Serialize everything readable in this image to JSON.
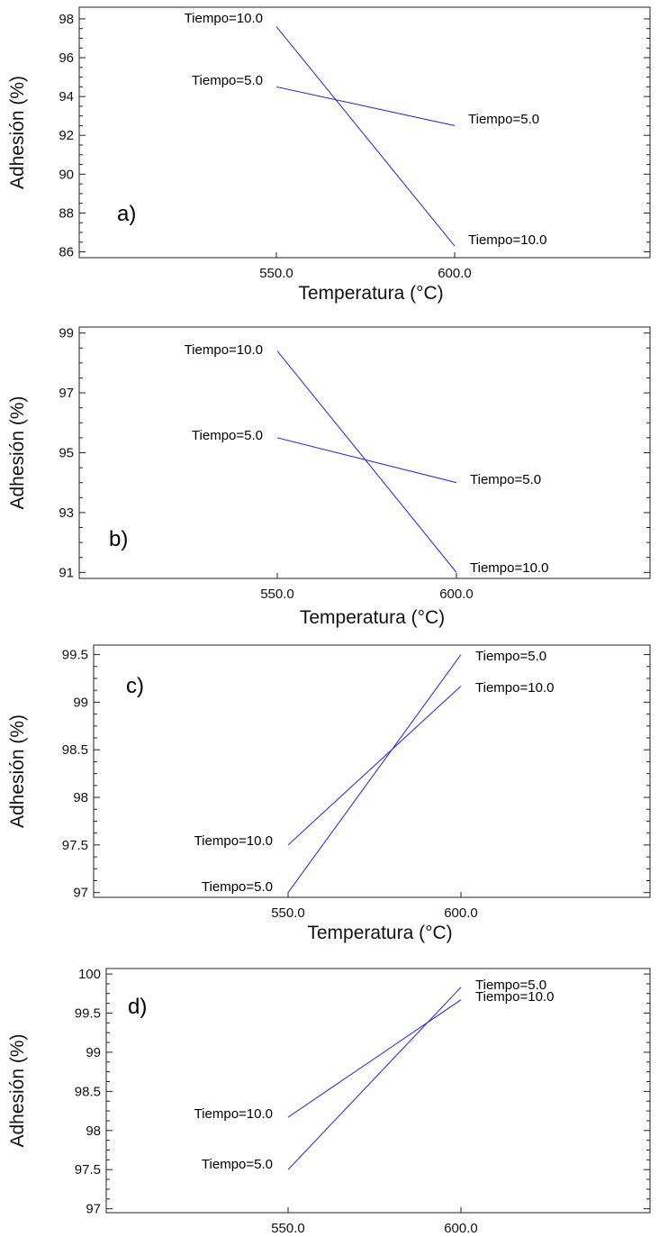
{
  "figure": {
    "background": "#ffffff",
    "line_color": "#3333dd",
    "axis_color": "#222222"
  },
  "chart_data": [
    {
      "panel": "a)",
      "type": "line",
      "xlabel": "Temperatura (°C)",
      "ylabel": "Adhesión (%)",
      "ylim": [
        85.7,
        98.6
      ],
      "xticks": [
        550,
        600
      ],
      "xtick_labels": [
        "550.0",
        "600.0"
      ],
      "yticks": [
        86,
        88,
        90,
        92,
        94,
        96,
        98
      ],
      "ytick_labels": [
        "86",
        "88",
        "90",
        "92",
        "94",
        "96",
        "98"
      ],
      "series": [
        {
          "name": "Tiempo=10.0",
          "x": [
            550,
            600
          ],
          "y": [
            97.6,
            86.3
          ],
          "label_start": "Tiempo=10.0",
          "label_end": "Tiempo=10.0"
        },
        {
          "name": "Tiempo=5.0",
          "x": [
            550,
            600
          ],
          "y": [
            94.5,
            92.5
          ],
          "label_start": "Tiempo=5.0",
          "label_end": "Tiempo=5.0"
        }
      ]
    },
    {
      "panel": "b)",
      "type": "line",
      "xlabel": "Temperatura (°C)",
      "ylabel": "Adhesión (%)",
      "ylim": [
        90.8,
        99.2
      ],
      "xticks": [
        550,
        600
      ],
      "xtick_labels": [
        "550.0",
        "600.0"
      ],
      "yticks": [
        91,
        93,
        95,
        97,
        99
      ],
      "ytick_labels": [
        "91",
        "93",
        "95",
        "97",
        "99"
      ],
      "series": [
        {
          "name": "Tiempo=10.0",
          "x": [
            550,
            600
          ],
          "y": [
            98.4,
            91.0
          ],
          "label_start": "Tiempo=10.0",
          "label_end": "Tiempo=10.0"
        },
        {
          "name": "Tiempo=5.0",
          "x": [
            550,
            600
          ],
          "y": [
            95.5,
            94.0
          ],
          "label_start": "Tiempo=5.0",
          "label_end": "Tiempo=5.0"
        }
      ]
    },
    {
      "panel": "c)",
      "type": "line",
      "xlabel": "Temperatura (°C)",
      "ylabel": "Adhesión (%)",
      "ylim": [
        96.95,
        99.6
      ],
      "xticks": [
        550,
        600
      ],
      "xtick_labels": [
        "550.0",
        "600.0"
      ],
      "yticks": [
        97,
        97.5,
        98,
        98.5,
        99,
        99.5
      ],
      "ytick_labels": [
        "97",
        "97.5",
        "98",
        "98.5",
        "99",
        "99.5"
      ],
      "series": [
        {
          "name": "Tiempo=5.0",
          "x": [
            550,
            600
          ],
          "y": [
            97.0,
            99.5
          ],
          "label_start": "Tiempo=5.0",
          "label_end": "Tiempo=5.0"
        },
        {
          "name": "Tiempo=10.0",
          "x": [
            550,
            600
          ],
          "y": [
            97.5,
            99.17
          ],
          "label_start": "Tiempo=10.0",
          "label_end": "Tiempo=10.0"
        }
      ]
    },
    {
      "panel": "d)",
      "type": "line",
      "xlabel": "",
      "ylabel": "Adhesión (%)",
      "ylim": [
        96.95,
        100.07
      ],
      "xticks": [
        550,
        600
      ],
      "xtick_labels": [
        "550.0",
        "600.0"
      ],
      "yticks": [
        97,
        97.5,
        98,
        98.5,
        99,
        99.5,
        100
      ],
      "ytick_labels": [
        "97",
        "97.5",
        "98",
        "98.5",
        "99",
        "99.5",
        "100"
      ],
      "series": [
        {
          "name": "Tiempo=5.0",
          "x": [
            550,
            600
          ],
          "y": [
            97.5,
            99.83
          ],
          "label_start": "Tiempo=5.0",
          "label_end": "Tiempo=5.0"
        },
        {
          "name": "Tiempo=10.0",
          "x": [
            550,
            600
          ],
          "y": [
            98.17,
            99.67
          ],
          "label_start": "Tiempo=10.0",
          "label_end": "Tiempo=10.0"
        }
      ]
    }
  ]
}
